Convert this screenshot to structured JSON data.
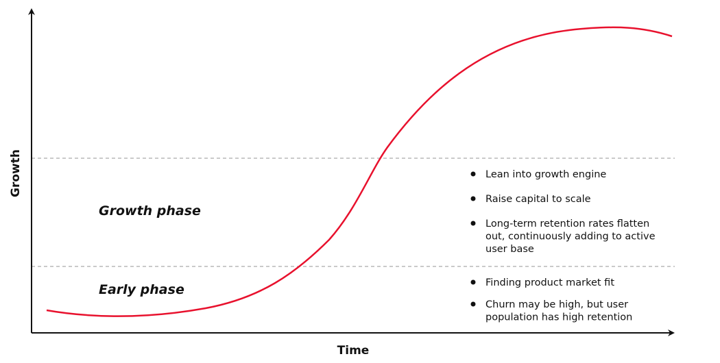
{
  "axes": {
    "y_label": "Growth",
    "x_label": "Time"
  },
  "phases": [
    {
      "label": "Growth phase",
      "bullets": [
        {
          "lines": [
            "Lean into growth engine"
          ]
        },
        {
          "lines": [
            "Raise capital to scale"
          ]
        },
        {
          "lines": [
            "Long-term retention rates flatten",
            "out, continuously adding to active",
            "user base"
          ]
        }
      ]
    },
    {
      "label": "Early phase",
      "bullets": [
        {
          "lines": [
            "Finding product market fit"
          ]
        },
        {
          "lines": [
            "Churn may be high, but user",
            "population has high retention"
          ]
        }
      ]
    }
  ]
}
